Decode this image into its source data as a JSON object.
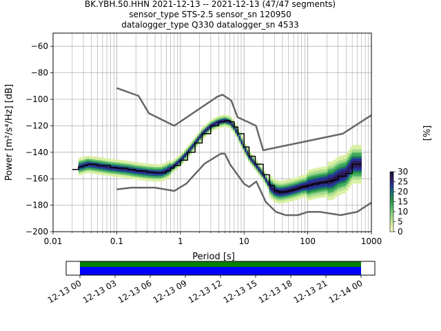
{
  "title": {
    "line1": "BK.YBH.50.HHN   2021-12-13 -- 2021-12-13  (47/47 segments)",
    "line2": "sensor_type STS-2.5 sensor_sn 120950",
    "line3": "datalogger_type Q330 datalogger_sn 4533"
  },
  "chart_data": {
    "type": "heatmap",
    "xlabel": "Period [s]",
    "ylabel": "Power [m²/s⁴/Hz] [dB]",
    "xscale": "log",
    "xlim": [
      0.01,
      1000
    ],
    "ylim": [
      -200,
      -50
    ],
    "x_ticks": [
      "0.01",
      "0.1",
      "1",
      "10",
      "100",
      "1000"
    ],
    "y_ticks": [
      "−200",
      "−180",
      "−160",
      "−140",
      "−120",
      "−100",
      "−80",
      "−60"
    ],
    "grid": true,
    "colorbar": {
      "label": "[%]",
      "range": [
        0,
        30
      ],
      "ticks": [
        "0",
        "5",
        "10",
        "15",
        "20",
        "25",
        "30"
      ],
      "colormap": [
        "#ffffcc",
        "#d9f0a3",
        "#addd8e",
        "#78c679",
        "#41ab5d",
        "#238b45",
        "#1d6a7a",
        "#253494",
        "#2c1c5e",
        "#1a0933"
      ]
    },
    "noise_model_high": {
      "period": [
        0.1,
        0.22,
        0.32,
        0.8,
        3.8,
        4.6,
        6.3,
        7.9,
        15.4,
        20,
        354.8,
        1000
      ],
      "db": [
        -91.5,
        -97.4,
        -110.5,
        -120,
        -98,
        -96.5,
        -101,
        -113.5,
        -120,
        -138.5,
        -126,
        -112
      ]
    },
    "noise_model_low": {
      "period": [
        0.1,
        0.17,
        0.4,
        0.8,
        1.24,
        2.4,
        4.3,
        5.0,
        6.0,
        10.0,
        12.0,
        15.6,
        21.9,
        31.6,
        45,
        70,
        101,
        154,
        328,
        600,
        1000
      ],
      "db": [
        -168,
        -166.7,
        -166.7,
        -169.2,
        -163.7,
        -148.6,
        -141.1,
        -141.1,
        -149,
        -163.8,
        -166.2,
        -162.1,
        -177.5,
        -185,
        -187.5,
        -187.5,
        -185,
        -185,
        -187.5,
        -185,
        -178
      ]
    },
    "mode_curve": {
      "period": [
        0.02,
        0.025,
        0.03,
        0.035,
        0.05,
        0.08,
        0.1,
        0.15,
        0.2,
        0.3,
        0.4,
        0.5,
        0.6,
        0.7,
        0.8,
        1.0,
        1.3,
        1.7,
        2.2,
        3.0,
        4.0,
        5.0,
        6.0,
        7.0,
        8.0,
        10,
        12,
        15,
        20,
        25,
        30,
        35,
        40,
        50,
        60,
        70,
        80,
        100,
        120,
        150,
        200,
        250,
        300,
        400,
        500,
        600,
        700
      ],
      "db": [
        -153,
        -151,
        -150,
        -149,
        -150,
        -151.5,
        -152,
        -153,
        -154,
        -155,
        -155.5,
        -155.5,
        -154,
        -152,
        -150,
        -146,
        -140,
        -133,
        -126,
        -120,
        -117,
        -116,
        -117,
        -121,
        -126,
        -136,
        -143,
        -149,
        -157,
        -165,
        -169,
        -170,
        -170,
        -169,
        -168,
        -167,
        -166,
        -165,
        -164,
        -163,
        -162,
        -161,
        -158,
        -156,
        -149,
        -149,
        -149
      ]
    },
    "x_colorbar_date_ticks": [
      "12-13 00",
      "12-13 03",
      "12-13 06",
      "12-13 09",
      "12-13 12",
      "12-13 15",
      "12-13 18",
      "12-13 21",
      "12-14 00"
    ],
    "coverage": {
      "start": "12-13 00",
      "end": "12-14 00",
      "data_color": "#0000ff",
      "processed_color": "#008000"
    }
  }
}
